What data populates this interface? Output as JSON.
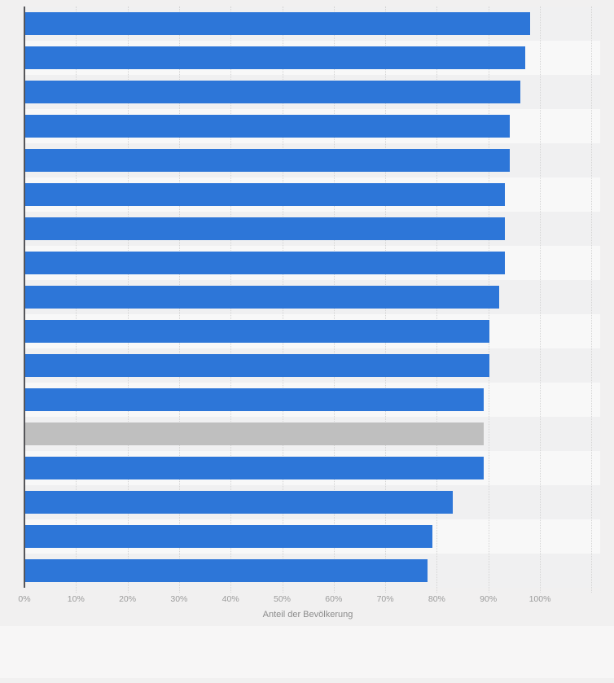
{
  "page": {
    "background": "#f1f0f0"
  },
  "chart_data": {
    "type": "bar",
    "orientation": "horizontal",
    "title": "",
    "xlabel": "Anteil der Bevölkerung",
    "ylabel": "",
    "xlim": [
      0,
      110
    ],
    "grid": "vertical-dotted",
    "legend": "none",
    "categories": [
      "",
      "",
      "",
      "",
      "",
      "",
      "",
      "",
      "",
      "",
      "",
      "",
      "",
      "",
      "",
      "",
      ""
    ],
    "values": [
      98,
      97,
      96,
      94,
      94,
      93,
      93,
      93,
      92,
      90,
      90,
      89,
      89,
      89,
      83,
      79,
      78
    ],
    "highlight_index": 12,
    "bar_color": "#2d76d8",
    "highlight_color": "#bfbfbf",
    "x_ticks": [
      "0%",
      "10%",
      "20%",
      "30%",
      "40%",
      "50%",
      "60%",
      "70%",
      "80%",
      "90%",
      "100%"
    ],
    "x_tick_values": [
      0,
      10,
      20,
      30,
      40,
      50,
      60,
      70,
      80,
      90,
      100
    ],
    "gridline_values": [
      10,
      20,
      30,
      40,
      50,
      60,
      70,
      80,
      90,
      100,
      110
    ]
  }
}
